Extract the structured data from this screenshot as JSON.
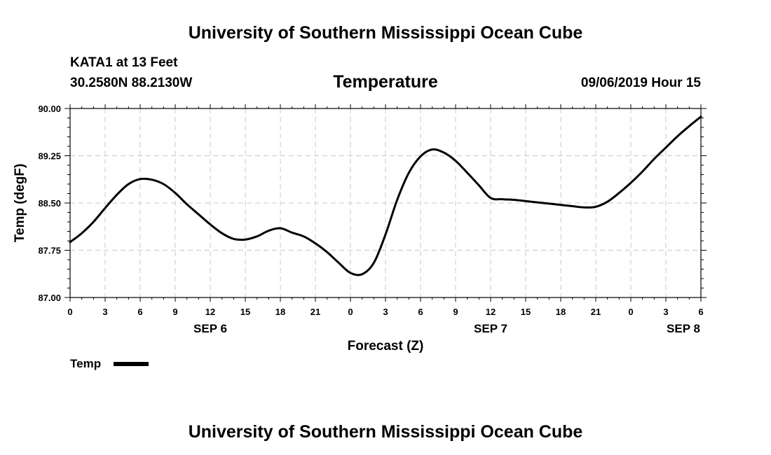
{
  "header": {
    "title_top": "University of Southern Mississippi Ocean Cube",
    "title_bottom": "University of Southern Mississippi Ocean Cube",
    "station": "KATA1 at 13 Feet",
    "coordinates": "30.2580N 88.2130W",
    "variable": "Temperature",
    "date": "09/06/2019 Hour 15"
  },
  "chart_data": {
    "type": "line",
    "title": "Temperature",
    "xlabel": "Forecast (Z)",
    "ylabel": "Temp (degF)",
    "x_unit": "hours since 2019-09-06 00Z",
    "xlim": [
      0,
      54
    ],
    "ylim": [
      87.0,
      90.0
    ],
    "grid": true,
    "y_ticks": [
      "87.00",
      "87.75",
      "88.50",
      "89.25",
      "90.00"
    ],
    "x_tick_labels": [
      "0",
      "3",
      "6",
      "9",
      "12",
      "15",
      "18",
      "21",
      "0",
      "3",
      "6",
      "9",
      "12",
      "15",
      "18",
      "21",
      "0",
      "3",
      "6"
    ],
    "date_labels": [
      {
        "label": "SEP 6",
        "x": 12
      },
      {
        "label": "SEP 7",
        "x": 36
      },
      {
        "label": "SEP 8",
        "x": 52.5
      }
    ],
    "legend": {
      "position": "bottom-left",
      "entries": [
        "Temp"
      ]
    },
    "series": [
      {
        "name": "Temp",
        "color": "#000000",
        "x": [
          0,
          1,
          2,
          3,
          4,
          5,
          6,
          7,
          8,
          9,
          10,
          11,
          12,
          13,
          14,
          15,
          16,
          17,
          18,
          19,
          20,
          21,
          22,
          23,
          24,
          25,
          26,
          27,
          28,
          29,
          30,
          31,
          32,
          33,
          34,
          35,
          36,
          37,
          38,
          39,
          40,
          41,
          42,
          43,
          44,
          45,
          46,
          47,
          48,
          49,
          50,
          51,
          52,
          53,
          54
        ],
        "values": [
          87.88,
          88.02,
          88.2,
          88.42,
          88.63,
          88.8,
          88.88,
          88.87,
          88.8,
          88.66,
          88.48,
          88.32,
          88.16,
          88.02,
          87.93,
          87.92,
          87.97,
          88.06,
          88.1,
          88.03,
          87.97,
          87.86,
          87.72,
          87.55,
          87.39,
          87.37,
          87.55,
          88.0,
          88.55,
          88.98,
          89.24,
          89.35,
          89.3,
          89.17,
          88.98,
          88.78,
          88.58,
          88.56,
          88.55,
          88.53,
          88.51,
          88.49,
          88.47,
          88.45,
          88.43,
          88.44,
          88.52,
          88.66,
          88.82,
          89.0,
          89.2,
          89.38,
          89.56,
          89.72,
          89.87
        ]
      }
    ]
  }
}
